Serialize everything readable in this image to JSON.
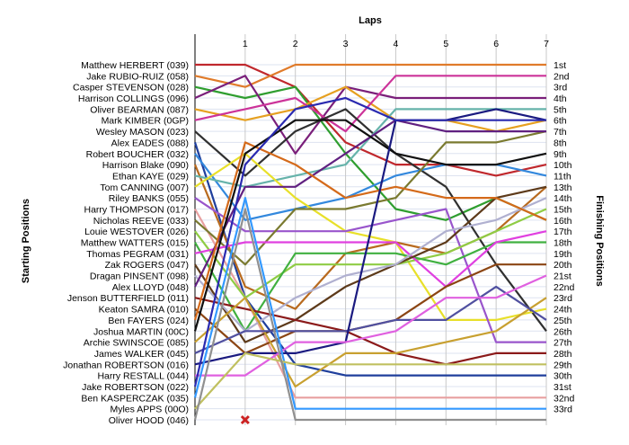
{
  "chart_data": {
    "type": "line",
    "title": "",
    "xlabel": "Laps",
    "ylabel_left": "Starting Positions",
    "ylabel_right": "Finishing Positions",
    "x": [
      0,
      1,
      2,
      3,
      4,
      5,
      6,
      7
    ],
    "x_tick_labels": [
      "1",
      "2",
      "3",
      "4",
      "5",
      "6",
      "7"
    ],
    "xlim": [
      0,
      7
    ],
    "ylim": [
      1,
      33
    ],
    "y_inverted": true,
    "grid": true,
    "start_labels": [
      "Matthew HERBERT (039)",
      "Jake RUBIO-RUIZ (058)",
      "Casper STEVENSON (028)",
      "Harrison COLLINGS (096)",
      "Oliver BEARMAN (087)",
      "Mark KIMBER (0GP)",
      "Wesley MASON (023)",
      "Alex EADES (088)",
      "Robert BOUCHER (032)",
      "Harrison Blake (090)",
      "Ethan KAYE (029)",
      "Tom CANNING (007)",
      "Riley BANKS (055)",
      "Harry THOMPSON (017)",
      "Nicholas REEVE (033)",
      "Louie WESTOVER (026)",
      "Matthew WATTERS (015)",
      "Thomas PEGRAM (031)",
      "Zak ROGERS (047)",
      "Dragan PINSENT (098)",
      "Alex LLOYD (048)",
      "Jenson BUTTERFIELD (011)",
      "Keaton SAMRA (010)",
      "Ben FAYERS (024)",
      "Joshua MARTIN (00C)",
      "Archie SWINSCOE (085)",
      "James WALKER (045)",
      "Jonathan ROBERTSON (016)",
      "Harry RESTALL (044)",
      "Jake ROBERTSON (022)",
      "Ben KASPERCZAK (035)",
      "Myles APPS (00O)",
      "Oliver HOOD (046)"
    ],
    "finish_labels": [
      "1st",
      "2nd",
      "3rd",
      "4th",
      "5th",
      "6th",
      "7th",
      "8th",
      "9th",
      "10th",
      "11th",
      "13th",
      "14th",
      "15th",
      "16th",
      "17th",
      "18th",
      "19th",
      "20th",
      "21st",
      "22nd",
      "23rd",
      "24th",
      "25th",
      "26th",
      "27th",
      "28th",
      "29th",
      "30th",
      "31st",
      "32nd",
      "33rd"
    ],
    "series": [
      {
        "color": "#c0282d",
        "positions": [
          1,
          1,
          3,
          8,
          10,
          10,
          11,
          10
        ]
      },
      {
        "color": "#e07b2a",
        "positions": [
          2,
          3,
          1,
          1,
          1,
          1,
          1,
          1
        ]
      },
      {
        "color": "#2f9e2f",
        "positions": [
          3,
          4,
          3,
          9,
          14,
          15,
          13,
          15
        ]
      },
      {
        "color": "#7a1f7a",
        "positions": [
          4,
          2,
          9,
          3,
          4,
          4,
          4,
          4
        ]
      },
      {
        "color": "#e6a020",
        "positions": [
          5,
          6,
          5,
          3,
          6,
          6,
          7,
          6
        ]
      },
      {
        "color": "#cc3399",
        "positions": [
          6,
          5,
          4,
          7,
          2,
          2,
          2,
          2
        ]
      },
      {
        "color": "#303030",
        "positions": [
          7,
          11,
          7,
          5,
          9,
          12,
          19,
          25
        ]
      },
      {
        "color": "#1f3f9c",
        "positions": [
          8,
          22,
          28,
          29,
          29,
          29,
          29,
          29
        ]
      },
      {
        "color": "#3388dd",
        "positions": [
          9,
          15,
          14,
          13,
          11,
          10,
          10,
          11
        ]
      },
      {
        "color": "#b86a1e",
        "positions": [
          10,
          21,
          23,
          18,
          17,
          18,
          16,
          12
        ]
      },
      {
        "color": "#66b3aa",
        "positions": [
          11,
          12,
          11,
          10,
          5,
          5,
          5,
          5
        ]
      },
      {
        "color": "#e8e02a",
        "positions": [
          12,
          9,
          13,
          16,
          17,
          24,
          24,
          23
        ]
      },
      {
        "color": "#9955cc",
        "positions": [
          13,
          16,
          16,
          16,
          15,
          14,
          26,
          26
        ]
      },
      {
        "color": "#e8a0a0",
        "positions": [
          14,
          22,
          31,
          31,
          31,
          31,
          31,
          31
        ]
      },
      {
        "color": "#7a7a30",
        "positions": [
          15,
          19,
          14,
          14,
          13,
          8,
          8,
          7
        ]
      },
      {
        "color": "#8fcc44",
        "positions": [
          16,
          22,
          19,
          19,
          19,
          18,
          16,
          14
        ]
      },
      {
        "color": "#40b040",
        "positions": [
          17,
          25,
          18,
          18,
          18,
          19,
          17,
          17
        ]
      },
      {
        "color": "#e040e0",
        "positions": [
          18,
          17,
          17,
          17,
          17,
          21,
          17,
          16
        ]
      },
      {
        "color": "#5d3a1a",
        "positions": [
          19,
          26,
          24,
          21,
          19,
          17,
          13,
          12
        ]
      },
      {
        "color": "#b0b0d0",
        "positions": [
          20,
          25,
          22,
          20,
          19,
          16,
          15,
          13
        ]
      },
      {
        "color": "#602080",
        "positions": [
          21,
          12,
          12,
          9,
          6,
          7,
          7,
          7
        ]
      },
      {
        "color": "#8b1a1a",
        "positions": [
          22,
          23,
          24,
          25,
          27,
          28,
          27,
          27
        ]
      },
      {
        "color": "#8b4513",
        "positions": [
          23,
          27,
          25,
          25,
          24,
          21,
          19,
          19
        ]
      },
      {
        "color": "#d46a1a",
        "positions": [
          24,
          8,
          10,
          13,
          12,
          13,
          13,
          15
        ]
      },
      {
        "color": "#101010",
        "positions": [
          25,
          9,
          6,
          6,
          9,
          10,
          10,
          9
        ]
      },
      {
        "color": "#c8a030",
        "positions": [
          26,
          22,
          30,
          27,
          27,
          26,
          25,
          22
        ]
      },
      {
        "color": "#5050a0",
        "positions": [
          27,
          25,
          25,
          25,
          24,
          24,
          21,
          24
        ]
      },
      {
        "color": "#1a1a80",
        "positions": [
          28,
          27,
          27,
          26,
          6,
          6,
          5,
          6
        ]
      },
      {
        "color": "#e060e0",
        "positions": [
          29,
          29,
          26,
          26,
          25,
          22,
          22,
          20
        ]
      },
      {
        "color": "#2a2ab0",
        "positions": [
          30,
          10,
          5,
          4,
          6,
          6,
          6,
          6
        ]
      },
      {
        "color": "#3399ff",
        "positions": [
          31,
          13,
          32,
          32,
          32,
          32,
          32,
          32
        ]
      },
      {
        "color": "#c0c060",
        "positions": [
          32,
          27,
          28,
          28,
          28,
          28,
          28,
          28
        ]
      },
      {
        "color": "#909090",
        "positions": [
          33,
          14,
          33,
          33,
          33,
          33,
          33,
          33
        ]
      }
    ],
    "retired": [
      {
        "series_index": 8,
        "lap": 1,
        "marker": "x",
        "color": "#cc2222"
      }
    ]
  }
}
